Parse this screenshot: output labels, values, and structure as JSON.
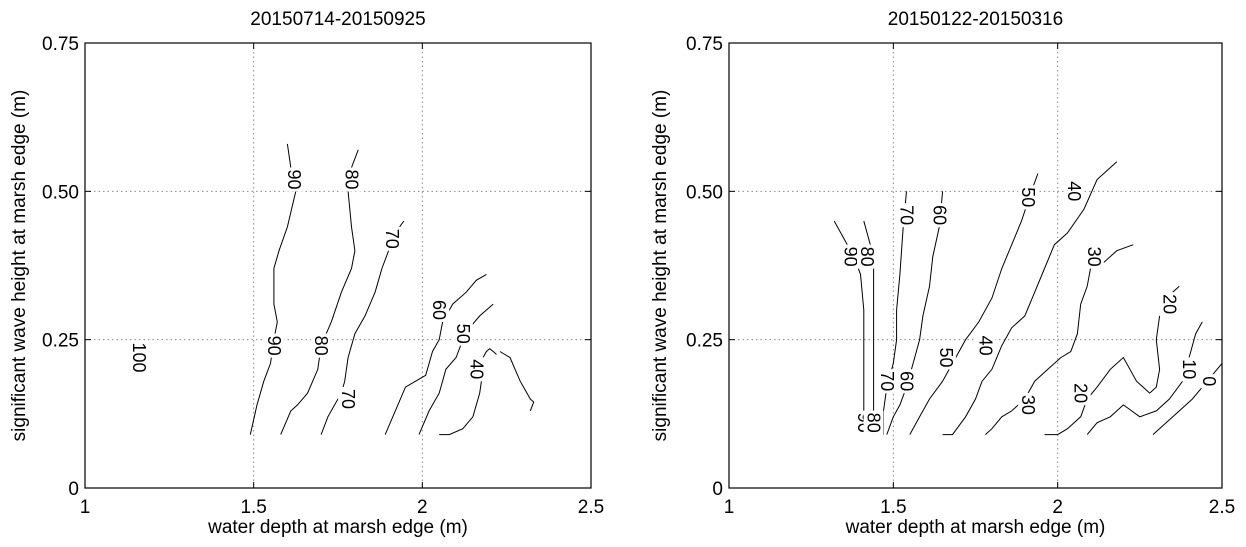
{
  "chart_data": [
    {
      "type": "contour",
      "title": "20150714-20150925",
      "xlabel": "water depth at marsh edge (m)",
      "ylabel": "significant wave height at marsh edge (m)",
      "xlim": [
        1,
        2.5
      ],
      "ylim": [
        0,
        0.75
      ],
      "xticks": [
        1,
        1.5,
        2,
        2.5
      ],
      "xticklabels": [
        "1",
        "1.5",
        "2",
        "2.5"
      ],
      "yticks": [
        0,
        0.25,
        0.5,
        0.75
      ],
      "yticklabels": [
        "0",
        "0.25",
        "0.50",
        "0.75"
      ],
      "grid": true,
      "labels": [
        {
          "text": "100",
          "x": 1.16,
          "y": 0.22
        },
        {
          "text": "90",
          "x": 1.62,
          "y": 0.52
        },
        {
          "text": "90",
          "x": 1.56,
          "y": 0.24
        },
        {
          "text": "80",
          "x": 1.79,
          "y": 0.52
        },
        {
          "text": "80",
          "x": 1.7,
          "y": 0.24
        },
        {
          "text": "70",
          "x": 1.91,
          "y": 0.42
        },
        {
          "text": "70",
          "x": 1.78,
          "y": 0.15
        },
        {
          "text": "60",
          "x": 2.05,
          "y": 0.3
        },
        {
          "text": "50",
          "x": 2.12,
          "y": 0.26
        },
        {
          "text": "40",
          "x": 2.16,
          "y": 0.2
        }
      ],
      "contours": [
        {
          "level": 90,
          "points": [
            [
              1.6,
              0.58
            ],
            [
              1.61,
              0.54
            ],
            [
              1.625,
              0.5
            ],
            [
              1.6,
              0.44
            ],
            [
              1.575,
              0.4
            ],
            [
              1.56,
              0.37
            ],
            [
              1.56,
              0.31
            ],
            [
              1.57,
              0.28
            ],
            [
              1.56,
              0.25
            ],
            [
              1.55,
              0.21
            ],
            [
              1.53,
              0.18
            ],
            [
              1.51,
              0.14
            ],
            [
              1.49,
              0.09
            ]
          ]
        },
        {
          "level": 80,
          "points": [
            [
              1.81,
              0.57
            ],
            [
              1.79,
              0.54
            ],
            [
              1.78,
              0.5
            ],
            [
              1.79,
              0.44
            ],
            [
              1.8,
              0.4
            ],
            [
              1.79,
              0.37
            ],
            [
              1.76,
              0.33
            ],
            [
              1.73,
              0.28
            ],
            [
              1.7,
              0.24
            ],
            [
              1.69,
              0.2
            ],
            [
              1.66,
              0.16
            ],
            [
              1.63,
              0.14
            ],
            [
              1.61,
              0.13
            ],
            [
              1.58,
              0.09
            ]
          ]
        },
        {
          "level": 70,
          "points": [
            [
              1.945,
              0.45
            ],
            [
              1.92,
              0.43
            ],
            [
              1.9,
              0.4
            ],
            [
              1.88,
              0.37
            ],
            [
              1.86,
              0.33
            ],
            [
              1.83,
              0.29
            ],
            [
              1.8,
              0.26
            ],
            [
              1.78,
              0.22
            ],
            [
              1.77,
              0.18
            ],
            [
              1.76,
              0.16
            ],
            [
              1.74,
              0.14
            ],
            [
              1.72,
              0.12
            ],
            [
              1.7,
              0.09
            ]
          ]
        },
        {
          "level": 60,
          "points": [
            [
              2.19,
              0.36
            ],
            [
              2.16,
              0.35
            ],
            [
              2.13,
              0.33
            ],
            [
              2.09,
              0.31
            ],
            [
              2.06,
              0.28
            ],
            [
              2.05,
              0.25
            ],
            [
              2.03,
              0.23
            ],
            [
              2.02,
              0.21
            ],
            [
              2.01,
              0.19
            ],
            [
              1.98,
              0.18
            ],
            [
              1.95,
              0.17
            ],
            [
              1.92,
              0.13
            ],
            [
              1.89,
              0.09
            ]
          ]
        },
        {
          "level": 50,
          "points": [
            [
              2.21,
              0.31
            ],
            [
              2.17,
              0.29
            ],
            [
              2.14,
              0.27
            ],
            [
              2.12,
              0.25
            ],
            [
              2.1,
              0.22
            ],
            [
              2.07,
              0.2
            ],
            [
              2.05,
              0.16
            ],
            [
              2.02,
              0.13
            ],
            [
              1.99,
              0.09
            ]
          ]
        },
        {
          "level": 40,
          "points": [
            [
              2.22,
              0.225
            ],
            [
              2.21,
              0.23
            ],
            [
              2.2,
              0.235
            ],
            [
              2.19,
              0.23
            ],
            [
              2.18,
              0.22
            ],
            [
              2.18,
              0.2
            ],
            [
              2.17,
              0.16
            ],
            [
              2.15,
              0.12
            ],
            [
              2.12,
              0.1
            ],
            [
              2.08,
              0.09
            ],
            [
              2.06,
              0.09
            ],
            [
              2.05,
              0.09
            ]
          ]
        },
        {
          "level": 40,
          "points": [
            [
              2.23,
              0.23
            ],
            [
              2.26,
              0.22
            ],
            [
              2.29,
              0.18
            ],
            [
              2.32,
              0.15
            ],
            [
              2.33,
              0.145
            ],
            [
              2.32,
              0.13
            ]
          ]
        }
      ]
    },
    {
      "type": "contour",
      "title": "20150122-20150316",
      "xlabel": "water depth at marsh edge (m)",
      "ylabel": "significant wave height at marsh edge (m)",
      "xlim": [
        1,
        2.5
      ],
      "ylim": [
        0,
        0.75
      ],
      "xticks": [
        1,
        1.5,
        2,
        2.5
      ],
      "xticklabels": [
        "1",
        "1.5",
        "2",
        "2.5"
      ],
      "yticks": [
        0,
        0.25,
        0.5,
        0.75
      ],
      "yticklabels": [
        "0",
        "0.25",
        "0.50",
        "0.75"
      ],
      "grid": true,
      "labels": [
        {
          "text": "90",
          "x": 1.37,
          "y": 0.39
        },
        {
          "text": "90",
          "x": 1.41,
          "y": 0.11
        },
        {
          "text": "80",
          "x": 1.42,
          "y": 0.39
        },
        {
          "text": "80",
          "x": 1.44,
          "y": 0.11
        },
        {
          "text": "70",
          "x": 1.54,
          "y": 0.46
        },
        {
          "text": "70",
          "x": 1.48,
          "y": 0.18
        },
        {
          "text": "60",
          "x": 1.64,
          "y": 0.46
        },
        {
          "text": "60",
          "x": 1.54,
          "y": 0.18
        },
        {
          "text": "50",
          "x": 1.91,
          "y": 0.49
        },
        {
          "text": "50",
          "x": 1.66,
          "y": 0.22
        },
        {
          "text": "40",
          "x": 2.05,
          "y": 0.5
        },
        {
          "text": "40",
          "x": 1.78,
          "y": 0.24
        },
        {
          "text": "30",
          "x": 2.11,
          "y": 0.39
        },
        {
          "text": "30",
          "x": 1.91,
          "y": 0.14
        },
        {
          "text": "20",
          "x": 2.34,
          "y": 0.31
        },
        {
          "text": "20",
          "x": 2.07,
          "y": 0.16
        },
        {
          "text": "10",
          "x": 2.4,
          "y": 0.2
        },
        {
          "text": "0",
          "x": 2.46,
          "y": 0.18
        }
      ],
      "contours": [
        {
          "level": 90,
          "points": [
            [
              1.32,
              0.45
            ],
            [
              1.35,
              0.42
            ],
            [
              1.38,
              0.39
            ],
            [
              1.4,
              0.36
            ],
            [
              1.41,
              0.3
            ],
            [
              1.41,
              0.22
            ],
            [
              1.41,
              0.15
            ],
            [
              1.41,
              0.09
            ]
          ]
        },
        {
          "level": 80,
          "points": [
            [
              1.41,
              0.45
            ],
            [
              1.43,
              0.41
            ],
            [
              1.44,
              0.37
            ],
            [
              1.44,
              0.3
            ],
            [
              1.44,
              0.22
            ],
            [
              1.44,
              0.15
            ],
            [
              1.44,
              0.09
            ]
          ]
        },
        {
          "level": 70,
          "points": [
            [
              1.54,
              0.5
            ],
            [
              1.53,
              0.44
            ],
            [
              1.52,
              0.36
            ],
            [
              1.51,
              0.3
            ],
            [
              1.51,
              0.25
            ],
            [
              1.5,
              0.21
            ],
            [
              1.48,
              0.17
            ],
            [
              1.47,
              0.13
            ],
            [
              1.47,
              0.09
            ]
          ]
        },
        {
          "level": 60,
          "points": [
            [
              1.65,
              0.5
            ],
            [
              1.64,
              0.44
            ],
            [
              1.62,
              0.39
            ],
            [
              1.61,
              0.34
            ],
            [
              1.59,
              0.29
            ],
            [
              1.58,
              0.25
            ],
            [
              1.56,
              0.21
            ],
            [
              1.54,
              0.17
            ],
            [
              1.52,
              0.14
            ],
            [
              1.5,
              0.12
            ],
            [
              1.48,
              0.09
            ]
          ]
        },
        {
          "level": 50,
          "points": [
            [
              1.94,
              0.53
            ],
            [
              1.92,
              0.5
            ],
            [
              1.89,
              0.45
            ],
            [
              1.86,
              0.41
            ],
            [
              1.83,
              0.37
            ],
            [
              1.8,
              0.32
            ],
            [
              1.76,
              0.28
            ],
            [
              1.72,
              0.25
            ],
            [
              1.68,
              0.21
            ],
            [
              1.65,
              0.18
            ],
            [
              1.61,
              0.15
            ],
            [
              1.58,
              0.12
            ],
            [
              1.55,
              0.09
            ]
          ]
        },
        {
          "level": 40,
          "points": [
            [
              2.18,
              0.55
            ],
            [
              2.12,
              0.52
            ],
            [
              2.08,
              0.47
            ],
            [
              2.03,
              0.43
            ],
            [
              1.99,
              0.41
            ],
            [
              1.96,
              0.37
            ],
            [
              1.93,
              0.33
            ],
            [
              1.9,
              0.29
            ],
            [
              1.86,
              0.27
            ],
            [
              1.83,
              0.24
            ],
            [
              1.8,
              0.2
            ],
            [
              1.77,
              0.18
            ],
            [
              1.75,
              0.15
            ],
            [
              1.72,
              0.12
            ],
            [
              1.68,
              0.09
            ],
            [
              1.65,
              0.09
            ]
          ]
        },
        {
          "level": 30,
          "points": [
            [
              2.23,
              0.41
            ],
            [
              2.18,
              0.4
            ],
            [
              2.14,
              0.38
            ],
            [
              2.1,
              0.37
            ],
            [
              2.09,
              0.34
            ],
            [
              2.07,
              0.31
            ],
            [
              2.06,
              0.26
            ],
            [
              2.04,
              0.23
            ],
            [
              2.01,
              0.22
            ],
            [
              1.97,
              0.2
            ],
            [
              1.93,
              0.18
            ],
            [
              1.9,
              0.15
            ],
            [
              1.86,
              0.13
            ],
            [
              1.83,
              0.12
            ],
            [
              1.8,
              0.1
            ],
            [
              1.78,
              0.09
            ]
          ]
        },
        {
          "level": 20,
          "points": [
            [
              2.37,
              0.34
            ],
            [
              2.35,
              0.33
            ],
            [
              2.33,
              0.31
            ],
            [
              2.31,
              0.29
            ],
            [
              2.3,
              0.25
            ],
            [
              2.31,
              0.2
            ],
            [
              2.3,
              0.17
            ],
            [
              2.28,
              0.16
            ],
            [
              2.24,
              0.18
            ],
            [
              2.2,
              0.22
            ],
            [
              2.16,
              0.2
            ],
            [
              2.12,
              0.17
            ],
            [
              2.09,
              0.15
            ],
            [
              2.07,
              0.12
            ],
            [
              2.03,
              0.1
            ],
            [
              2.0,
              0.09
            ],
            [
              1.96,
              0.09
            ]
          ]
        },
        {
          "level": 10,
          "points": [
            [
              2.44,
              0.28
            ],
            [
              2.42,
              0.26
            ],
            [
              2.4,
              0.22
            ],
            [
              2.38,
              0.18
            ],
            [
              2.34,
              0.15
            ],
            [
              2.3,
              0.13
            ],
            [
              2.25,
              0.12
            ],
            [
              2.2,
              0.14
            ],
            [
              2.16,
              0.12
            ],
            [
              2.12,
              0.11
            ],
            [
              2.09,
              0.09
            ]
          ]
        },
        {
          "level": 0,
          "points": [
            [
              2.5,
              0.21
            ],
            [
              2.47,
              0.19
            ],
            [
              2.44,
              0.17
            ],
            [
              2.41,
              0.15
            ],
            [
              2.37,
              0.13
            ],
            [
              2.33,
              0.11
            ],
            [
              2.29,
              0.09
            ]
          ]
        }
      ]
    }
  ]
}
